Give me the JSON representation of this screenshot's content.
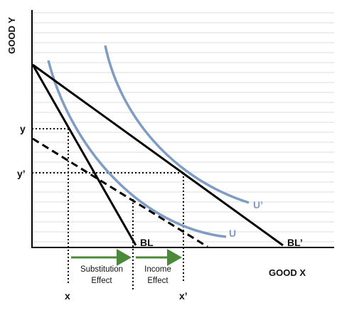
{
  "axes": {
    "y_label": "GOOD Y",
    "x_label": "GOOD X"
  },
  "lines": {
    "bl": "BL",
    "bl_prime": "BL’"
  },
  "curves": {
    "u": "U",
    "u_prime": "U’"
  },
  "points": {
    "y": "y",
    "y_prime": "y’",
    "x": "x",
    "x_prime": "x’"
  },
  "effects": {
    "substitution_line1": "Substitution",
    "substitution_line2": "Effect",
    "income_line1": "Income",
    "income_line2": "Effect"
  },
  "colors": {
    "axis": "#000000",
    "budget_line": "#000000",
    "indifference_curve": "#7f9cc4",
    "grid": "#dcdcdc",
    "arrow": "#4a8a3a"
  }
}
